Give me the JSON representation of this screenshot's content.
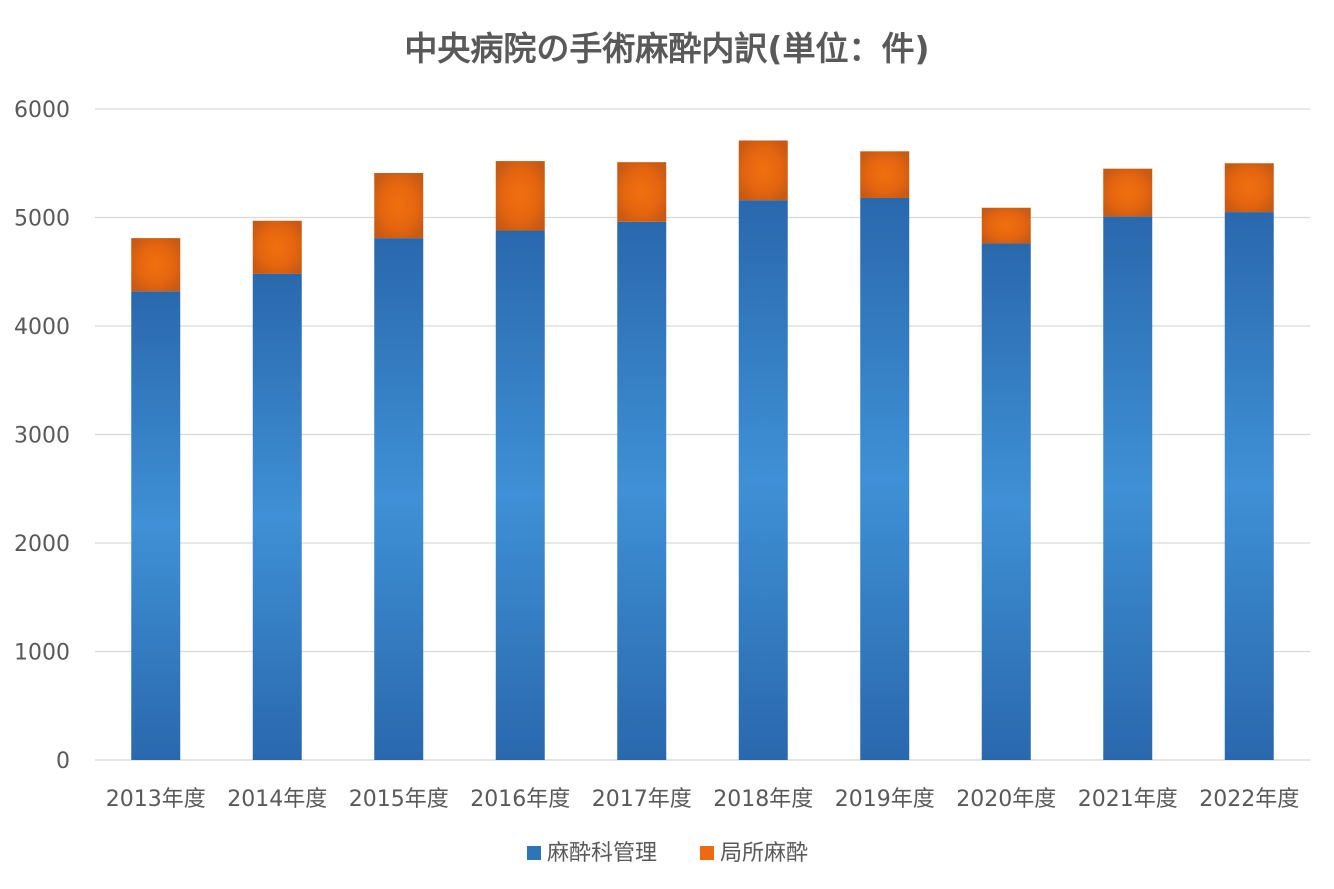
{
  "chart_data": {
    "type": "bar",
    "stacked": true,
    "title": "中央病院の手術麻酔内訳(単位：件)",
    "categories": [
      "2013年度",
      "2014年度",
      "2015年度",
      "2016年度",
      "2017年度",
      "2018年度",
      "2019年度",
      "2020年度",
      "2021年度",
      "2022年度"
    ],
    "series": [
      {
        "name": "麻酔科管理",
        "color": "#2e75b6",
        "values": [
          4320,
          4480,
          4810,
          4880,
          4960,
          5160,
          5180,
          4760,
          5010,
          5050
        ]
      },
      {
        "name": "局所麻酔",
        "color": "#ed6a12",
        "values": [
          490,
          490,
          600,
          640,
          550,
          550,
          430,
          330,
          440,
          450
        ]
      }
    ],
    "yticks": [
      "0",
      "1000",
      "2000",
      "3000",
      "4000",
      "5000",
      "6000"
    ],
    "ylim": [
      0,
      6000
    ],
    "grid": true,
    "legend": "bottom"
  }
}
